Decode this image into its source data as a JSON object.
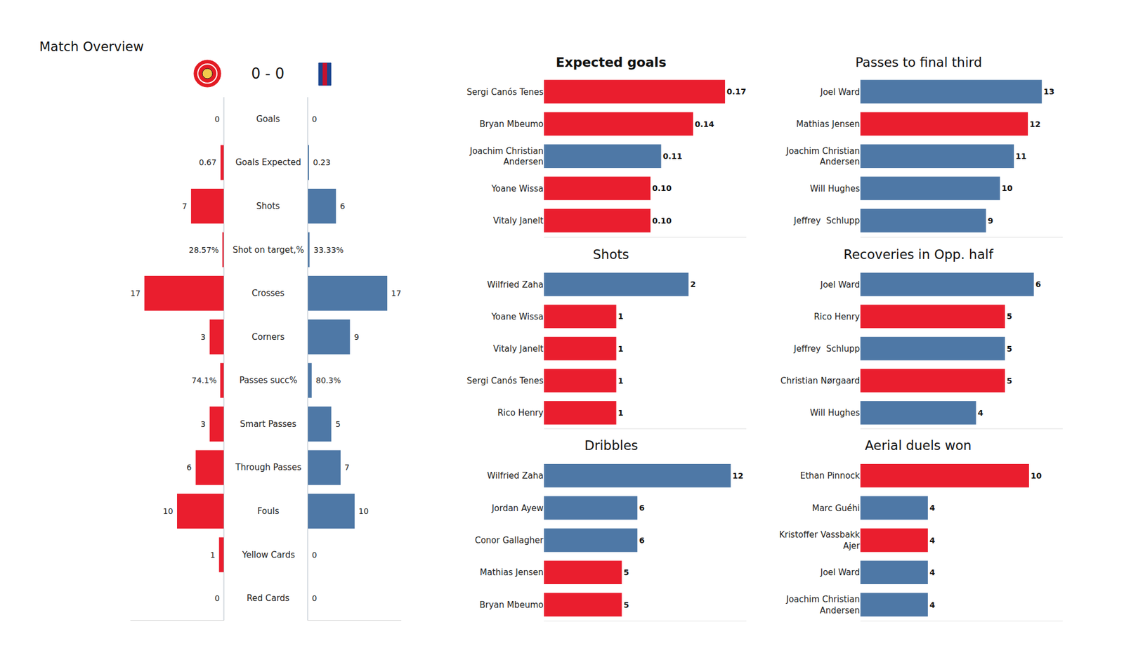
{
  "chart_data": [
    {
      "type": "bar",
      "orientation": "horizontal",
      "title": "Match Overview",
      "subtitle": "0 - 0",
      "categories": [
        "Goals",
        "Goals Expected",
        "Shots",
        "Shot on target,%",
        "Crosses",
        "Corners",
        "Passes succ%",
        "Smart Passes",
        "Through Passes",
        "Fouls",
        "Yellow Cards",
        "Red Cards"
      ],
      "series": [
        {
          "color": "#ea1e2e",
          "values": [
            0,
            0.67,
            7,
            0.2857,
            17,
            3,
            0.741,
            3,
            6,
            10,
            1,
            0
          ],
          "value_labels": [
            "0",
            "0.67",
            "7",
            "28.57%",
            "17",
            "3",
            "74.1%",
            "3",
            "6",
            "10",
            "1",
            "0"
          ]
        },
        {
          "color": "#4e78a6",
          "values": [
            0,
            0.23,
            6,
            0.3333,
            17,
            9,
            0.803,
            5,
            7,
            10,
            0,
            0
          ],
          "value_labels": [
            "0",
            "0.23",
            "6",
            "33.33%",
            "17",
            "9",
            "80.3%",
            "5",
            "7",
            "10",
            "0",
            "0"
          ]
        }
      ],
      "xlim": [
        0,
        20
      ],
      "tick_labels": false,
      "data_labels": true,
      "grid": false
    },
    {
      "type": "bar",
      "orientation": "horizontal",
      "title": "Expected goals",
      "categories": [
        "Sergi Canós Tenes",
        "Bryan Mbeumo",
        "Joachim Christian Andersen",
        "Yoane Wissa",
        "Vitaly Janelt"
      ],
      "values": [
        0.17,
        0.14,
        0.11,
        0.1,
        0.1
      ],
      "value_labels": [
        "0.17",
        "0.14",
        "0.11",
        "0.10",
        "0.10"
      ],
      "colors": [
        "#ea1e2e",
        "#ea1e2e",
        "#4e78a6",
        "#ea1e2e",
        "#ea1e2e"
      ],
      "xlim": [
        0,
        0.19
      ],
      "tick_labels": "y",
      "data_labels": true,
      "grid": false
    },
    {
      "type": "bar",
      "orientation": "horizontal",
      "title": "Shots",
      "categories": [
        "Wilfried Zaha",
        "Yoane Wissa",
        "Vitaly Janelt",
        "Sergi Canós Tenes",
        "Rico Henry"
      ],
      "values": [
        2,
        1,
        1,
        1,
        1
      ],
      "colors": [
        "#4e78a6",
        "#ea1e2e",
        "#ea1e2e",
        "#ea1e2e",
        "#ea1e2e"
      ],
      "xlim": [
        0,
        2.8
      ],
      "tick_labels": "y",
      "data_labels": true,
      "grid": false
    },
    {
      "type": "bar",
      "orientation": "horizontal",
      "title": "Dribbles",
      "categories": [
        "Wilfried Zaha",
        "Jordan Ayew",
        "Conor Gallagher",
        "Mathias Jensen",
        "Bryan Mbeumo"
      ],
      "values": [
        12,
        6,
        6,
        5,
        5
      ],
      "colors": [
        "#4e78a6",
        "#4e78a6",
        "#4e78a6",
        "#ea1e2e",
        "#ea1e2e"
      ],
      "xlim": [
        0,
        13
      ],
      "tick_labels": "y",
      "data_labels": true,
      "grid": false
    },
    {
      "type": "bar",
      "orientation": "horizontal",
      "title": "Passes to final third",
      "categories": [
        "Joel Ward",
        "Mathias Jensen",
        "Joachim Christian Andersen",
        "Will Hughes",
        "Jeffrey  Schlupp"
      ],
      "values": [
        13,
        12,
        11,
        10,
        9
      ],
      "colors": [
        "#4e78a6",
        "#ea1e2e",
        "#4e78a6",
        "#4e78a6",
        "#4e78a6"
      ],
      "xlim": [
        0,
        14.5
      ],
      "tick_labels": "y",
      "data_labels": true,
      "grid": false
    },
    {
      "type": "bar",
      "orientation": "horizontal",
      "title": "Recoveries in Opp. half",
      "categories": [
        "Joel Ward",
        "Rico Henry",
        "Jeffrey  Schlupp",
        "Christian Nørgaard",
        "Will Hughes"
      ],
      "values": [
        6,
        5,
        5,
        5,
        4
      ],
      "colors": [
        "#4e78a6",
        "#ea1e2e",
        "#4e78a6",
        "#ea1e2e",
        "#4e78a6"
      ],
      "xlim": [
        0,
        7
      ],
      "tick_labels": "y",
      "data_labels": true,
      "grid": false
    },
    {
      "type": "bar",
      "orientation": "horizontal",
      "title": "Aerial duels won",
      "categories": [
        "Ethan Pinnock",
        "Marc Guéhi",
        "Kristoffer Vassbakk Ajer",
        "Joel Ward",
        "Joachim Christian Andersen"
      ],
      "values": [
        10,
        4,
        4,
        4,
        4
      ],
      "colors": [
        "#ea1e2e",
        "#4e78a6",
        "#ea1e2e",
        "#4e78a6",
        "#4e78a6"
      ],
      "xlim": [
        0,
        12
      ],
      "tick_labels": "y",
      "data_labels": true,
      "grid": false
    }
  ]
}
